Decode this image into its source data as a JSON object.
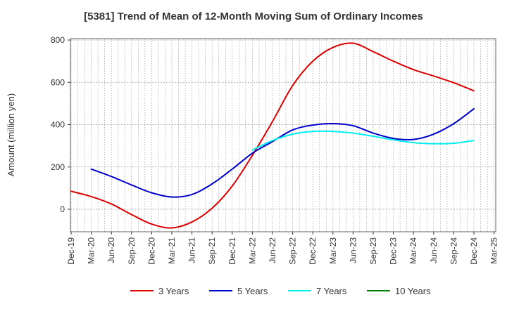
{
  "chart_data": {
    "type": "line",
    "title": "[5381]  Trend of Mean of 12-Month Moving Sum of Ordinary Incomes",
    "ylabel": "Amount (million yen)",
    "xlabel": "",
    "ylim": [
      -100,
      810
    ],
    "yticks": [
      0,
      200,
      400,
      600,
      800
    ],
    "grid": true,
    "legend_position": "bottom",
    "x_ticks": [
      "Dec-19",
      "Mar-20",
      "Jun-20",
      "Sep-20",
      "Dec-20",
      "Mar-21",
      "Jun-21",
      "Sep-21",
      "Dec-21",
      "Mar-22",
      "Jun-22",
      "Sep-22",
      "Dec-22",
      "Mar-23",
      "Jun-23",
      "Sep-23",
      "Dec-23",
      "Mar-24",
      "Jun-24",
      "Sep-24",
      "Dec-24",
      "Mar-25"
    ],
    "series": [
      {
        "name": "3 Years",
        "color": "#dd0000",
        "x": [
          "Dec-19",
          "Mar-20",
          "Jun-20",
          "Sep-20",
          "Dec-20",
          "Mar-21",
          "Jun-21",
          "Sep-21",
          "Dec-21",
          "Mar-22",
          "Jun-22",
          "Sep-22",
          "Dec-22",
          "Mar-23",
          "Jun-23",
          "Sep-23",
          "Dec-23",
          "Mar-24",
          "Jun-24",
          "Sep-24",
          "Dec-24"
        ],
        "values": [
          85,
          60,
          25,
          -25,
          -70,
          -88,
          -60,
          5,
          110,
          255,
          415,
          585,
          700,
          765,
          785,
          745,
          700,
          660,
          630,
          598,
          560
        ]
      },
      {
        "name": "5 Years",
        "color": "#0000cc",
        "x": [
          "Mar-20",
          "Jun-20",
          "Sep-20",
          "Dec-20",
          "Mar-21",
          "Jun-21",
          "Sep-21",
          "Dec-21",
          "Mar-22",
          "Jun-22",
          "Sep-22",
          "Dec-22",
          "Mar-23",
          "Jun-23",
          "Sep-23",
          "Dec-23",
          "Mar-24",
          "Jun-24",
          "Sep-24",
          "Dec-24"
        ],
        "values": [
          190,
          155,
          115,
          78,
          58,
          70,
          120,
          190,
          265,
          320,
          375,
          398,
          405,
          395,
          360,
          335,
          330,
          355,
          405,
          475
        ]
      },
      {
        "name": "7 Years",
        "color": "#00eeee",
        "x": [
          "Mar-22",
          "Jun-22",
          "Sep-22",
          "Dec-22",
          "Mar-23",
          "Jun-23",
          "Sep-23",
          "Dec-23",
          "Mar-24",
          "Jun-24",
          "Sep-24",
          "Dec-24"
        ],
        "values": [
          280,
          325,
          355,
          368,
          368,
          360,
          345,
          328,
          315,
          310,
          312,
          325
        ]
      },
      {
        "name": "10 Years",
        "color": "#008000",
        "x": [],
        "values": []
      }
    ]
  }
}
